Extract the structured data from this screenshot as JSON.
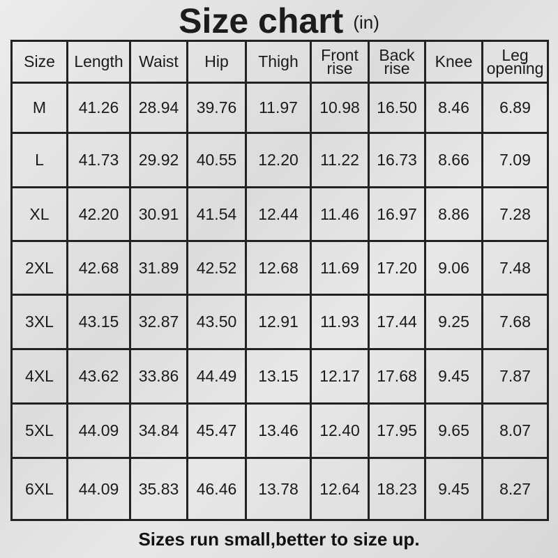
{
  "title": "Size chart",
  "unit": "(in)",
  "table": {
    "headers": [
      "Size",
      "Length",
      "Waist",
      "Hip",
      "Thigh",
      "Front rise",
      "Back rise",
      "Knee",
      "Leg opening"
    ],
    "rows": [
      [
        "M",
        "41.26",
        "28.94",
        "39.76",
        "11.97",
        "10.98",
        "16.50",
        "8.46",
        "6.89"
      ],
      [
        "L",
        "41.73",
        "29.92",
        "40.55",
        "12.20",
        "11.22",
        "16.73",
        "8.66",
        "7.09"
      ],
      [
        "XL",
        "42.20",
        "30.91",
        "41.54",
        "12.44",
        "11.46",
        "16.97",
        "8.86",
        "7.28"
      ],
      [
        "2XL",
        "42.68",
        "31.89",
        "42.52",
        "12.68",
        "11.69",
        "17.20",
        "9.06",
        "7.48"
      ],
      [
        "3XL",
        "43.15",
        "32.87",
        "43.50",
        "12.91",
        "11.93",
        "17.44",
        "9.25",
        "7.68"
      ],
      [
        "4XL",
        "43.62",
        "33.86",
        "44.49",
        "13.15",
        "12.17",
        "17.68",
        "9.45",
        "7.87"
      ],
      [
        "5XL",
        "44.09",
        "34.84",
        "45.47",
        "13.46",
        "12.40",
        "17.95",
        "9.65",
        "8.07"
      ],
      [
        "6XL",
        "44.09",
        "35.83",
        "46.46",
        "13.78",
        "12.64",
        "18.23",
        "9.45",
        "8.27"
      ]
    ]
  },
  "footer": "Sizes run small,better to size up."
}
